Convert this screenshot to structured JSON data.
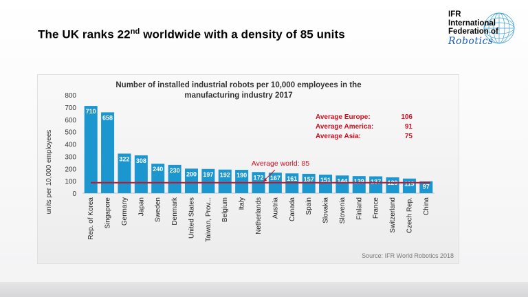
{
  "slide": {
    "title_main": "The UK ranks 22",
    "title_sup": "nd",
    "title_rest": " worldwide with a density of 85 units"
  },
  "logo": {
    "line1": "IFR",
    "line2": "International",
    "line3": "Federation of",
    "script": "Robotics"
  },
  "chart_data": {
    "type": "bar",
    "title_line1": "Number of installed industrial robots per 10,000 employees in the",
    "title_line2": "manufacturing industry 2017",
    "ylabel": "units per 10,000 employees",
    "ylim": [
      0,
      800
    ],
    "yticks": [
      "0",
      "100",
      "200",
      "300",
      "400",
      "500",
      "600",
      "700",
      "800"
    ],
    "categories": [
      "Rep. of Korea",
      "Singapore",
      "Germany",
      "Japan",
      "Sweden",
      "Denmark",
      "United States",
      "Taiwan, Prov...",
      "Belgium",
      "Italy",
      "Netherlands",
      "Austria",
      "Canada",
      "Spain",
      "Slovakia",
      "Slovenia",
      "Finland",
      "France",
      "Switzerland",
      "Czech Rep.",
      "China"
    ],
    "values": [
      710,
      658,
      322,
      308,
      240,
      230,
      200,
      197,
      192,
      190,
      172,
      167,
      161,
      157,
      151,
      144,
      139,
      137,
      129,
      119,
      97
    ],
    "value_labels": [
      "710",
      "658",
      "322",
      "308",
      "240",
      "230",
      "200",
      "197",
      "192",
      "190",
      "172",
      "167",
      "161",
      "157",
      "151",
      "144",
      "139",
      "137",
      "129",
      "119",
      "97"
    ],
    "average_world": {
      "label": "Average world: 85",
      "value": 85
    },
    "averages": [
      {
        "label": "Average Europe:",
        "value": "106"
      },
      {
        "label": "Average America:",
        "value": "91"
      },
      {
        "label": "Average Asia:",
        "value": "75"
      }
    ],
    "source": "Source: IFR World Robotics 2018",
    "colors": {
      "bar": "#1b96cf",
      "average": "#cc1122",
      "text": "#333333"
    }
  }
}
